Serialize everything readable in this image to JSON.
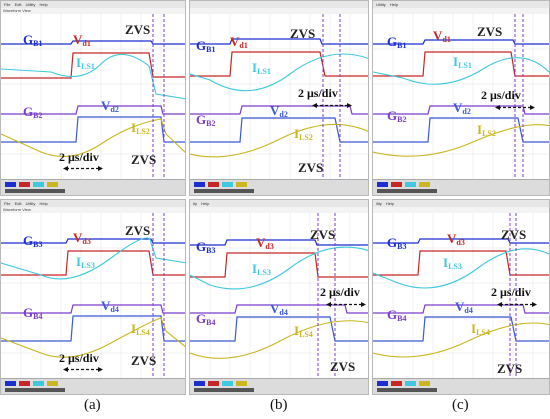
{
  "colors": {
    "gate": "#1c2ecf",
    "vds": "#c62626",
    "current": "#3fc8de",
    "gate2": "#7a3cc9",
    "vds2": "#3a58d8",
    "current2": "#c9b620",
    "zvs_marker": "#7a3cc9"
  },
  "panels": [
    {
      "id": "a-top",
      "menu": [
        "File",
        "Edit",
        "Utility",
        "Help"
      ],
      "title": "Waveform View",
      "labels": {
        "g1": "G",
        "g1_sub": "B1",
        "v1": "V",
        "v1_sub": "d1",
        "i1": "I",
        "i1_sub": "LS1",
        "g2": "G",
        "g2_sub": "B2",
        "v2": "V",
        "v2_sub": "d2",
        "i2": "I",
        "i2_sub": "LS2",
        "zvs1": "ZVS",
        "zvs2": "ZVS",
        "scale": "2 μs/div"
      }
    },
    {
      "id": "b-top",
      "menu": [],
      "title": "",
      "labels": {
        "g1": "G",
        "g1_sub": "B1",
        "v1": "V",
        "v1_sub": "d1",
        "i1": "I",
        "i1_sub": "LS1",
        "g2": "G",
        "g2_sub": "B2",
        "v2": "V",
        "v2_sub": "d2",
        "i2": "I",
        "i2_sub": "LS2",
        "zvs1": "ZVS",
        "zvs2": "ZVS",
        "scale": "2 μs/div"
      }
    },
    {
      "id": "c-top",
      "menu": [
        "Utility",
        "Help"
      ],
      "title": "",
      "labels": {
        "g1": "G",
        "g1_sub": "B1",
        "v1": "V",
        "v1_sub": "d1",
        "i1": "I",
        "i1_sub": "LS1",
        "g2": "G",
        "g2_sub": "B2",
        "v2": "V",
        "v2_sub": "d2",
        "i2": "I",
        "i2_sub": "LS2",
        "zvs1": "ZVS",
        "zvs2": "",
        "scale": "2 μs/div"
      }
    },
    {
      "id": "a-bot",
      "menu": [
        "File",
        "Edit",
        "Utility",
        "Help"
      ],
      "title": "Waveform View",
      "labels": {
        "g1": "G",
        "g1_sub": "B3",
        "v1": "V",
        "v1_sub": "d3",
        "i1": "I",
        "i1_sub": "LS3",
        "g2": "G",
        "g2_sub": "B4",
        "v2": "V",
        "v2_sub": "d4",
        "i2": "I",
        "i2_sub": "LS4",
        "zvs1": "ZVS",
        "zvs2": "ZVS",
        "scale": "2 μs/div"
      }
    },
    {
      "id": "b-bot",
      "menu": [
        "ity",
        "Help"
      ],
      "title": "",
      "labels": {
        "g1": "G",
        "g1_sub": "B3",
        "v1": "V",
        "v1_sub": "d3",
        "i1": "I",
        "i1_sub": "LS3",
        "g2": "G",
        "g2_sub": "B4",
        "v2": "V",
        "v2_sub": "d4",
        "i2": "I",
        "i2_sub": "LS4",
        "zvs1": "ZVS",
        "zvs2": "ZVS",
        "scale": "2 μs/div"
      }
    },
    {
      "id": "c-bot",
      "menu": [
        "ility",
        "Help"
      ],
      "title": "",
      "labels": {
        "g1": "G",
        "g1_sub": "B3",
        "v1": "V",
        "v1_sub": "d3",
        "i1": "I",
        "i1_sub": "LS3",
        "g2": "G",
        "g2_sub": "B4",
        "v2": "V",
        "v2_sub": "d4",
        "i2": "I",
        "i2_sub": "LS4",
        "zvs1": "ZVS",
        "zvs2": "ZVS",
        "scale": "2 μs/div"
      }
    }
  ],
  "captions": [
    "(a)",
    "(b)",
    "(c)"
  ]
}
